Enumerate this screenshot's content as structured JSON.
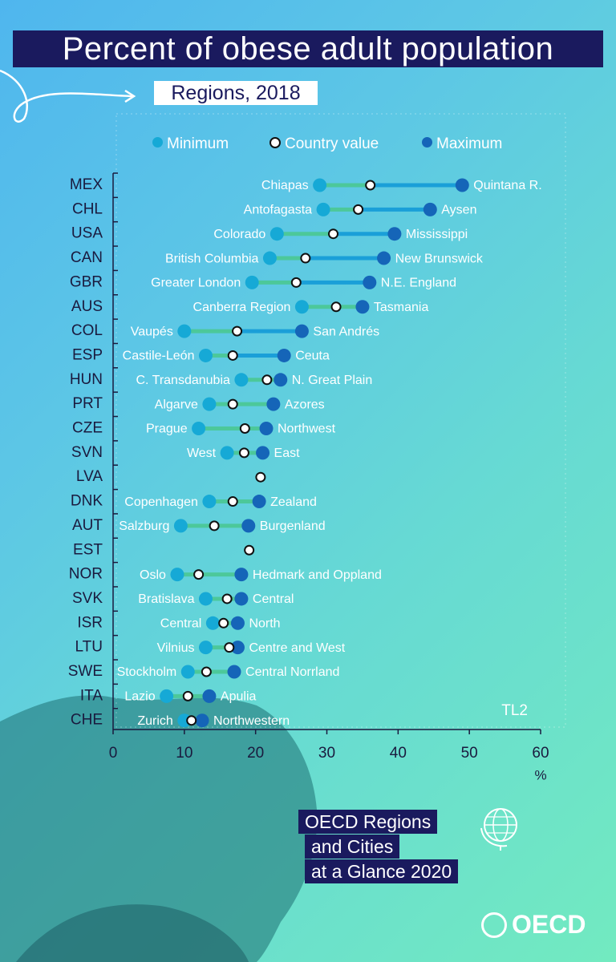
{
  "header": {
    "title": "Percent of obese adult population",
    "subtitle": "Regions, 2018"
  },
  "legend": {
    "min_label": "Minimum",
    "country_label": "Country value",
    "max_label": "Maximum"
  },
  "colors": {
    "minimum": "#16a9d6",
    "maximum": "#1565b8",
    "country_fill": "#ffffff",
    "range_green": "#4cc89a",
    "range_blue": "#1a9fd8",
    "dark_navy": "#1a1a5e"
  },
  "chart_data": {
    "type": "dot-range",
    "title": "Percent of obese adult population",
    "subtitle": "Regions, 2018",
    "xlabel": "%",
    "xlim": [
      0,
      60
    ],
    "xticks": [
      0,
      10,
      20,
      30,
      40,
      50,
      60
    ],
    "annotation": "TL2",
    "rows": [
      {
        "country": "MEX",
        "min": 29,
        "min_region": "Chiapas",
        "value": 36.1,
        "max": 49,
        "max_region": "Quintana R."
      },
      {
        "country": "CHL",
        "min": 29.5,
        "min_region": "Antofagasta",
        "value": 34.4,
        "max": 44.5,
        "max_region": "Aysen"
      },
      {
        "country": "USA",
        "min": 23,
        "min_region": "Colorado",
        "value": 30.9,
        "max": 39.5,
        "max_region": "Mississippi"
      },
      {
        "country": "CAN",
        "min": 22,
        "min_region": "British Columbia",
        "value": 27,
        "max": 38,
        "max_region": "New Brunswick"
      },
      {
        "country": "GBR",
        "min": 19.5,
        "min_region": "Greater London",
        "value": 25.7,
        "max": 36,
        "max_region": "N.E. England"
      },
      {
        "country": "AUS",
        "min": 26.5,
        "min_region": "Canberra Region",
        "value": 31.3,
        "max": 35,
        "max_region": "Tasmania"
      },
      {
        "country": "COL",
        "min": 10,
        "min_region": "Vaupés",
        "value": 17.4,
        "max": 26.5,
        "max_region": "San Andrés"
      },
      {
        "country": "ESP",
        "min": 13,
        "min_region": "Castile-León",
        "value": 16.8,
        "max": 24,
        "max_region": "Ceuta"
      },
      {
        "country": "HUN",
        "min": 18,
        "min_region": "C. Transdanubia",
        "value": 21.6,
        "max": 23.5,
        "max_region": "N. Great Plain"
      },
      {
        "country": "PRT",
        "min": 13.5,
        "min_region": "Algarve",
        "value": 16.8,
        "max": 22.5,
        "max_region": "Azores"
      },
      {
        "country": "CZE",
        "min": 12,
        "min_region": "Prague",
        "value": 18.5,
        "max": 21.5,
        "max_region": "Northwest"
      },
      {
        "country": "SVN",
        "min": 16,
        "min_region": "West",
        "value": 18.4,
        "max": 21,
        "max_region": "East"
      },
      {
        "country": "LVA",
        "min": null,
        "min_region": "",
        "value": 20.7,
        "max": null,
        "max_region": ""
      },
      {
        "country": "DNK",
        "min": 13.5,
        "min_region": "Copenhagen",
        "value": 16.8,
        "max": 20.5,
        "max_region": "Zealand"
      },
      {
        "country": "AUT",
        "min": 9.5,
        "min_region": "Salzburg",
        "value": 14.2,
        "max": 19,
        "max_region": "Burgenland"
      },
      {
        "country": "EST",
        "min": null,
        "min_region": "",
        "value": 19.1,
        "max": null,
        "max_region": ""
      },
      {
        "country": "NOR",
        "min": 9,
        "min_region": "Oslo",
        "value": 12,
        "max": 18,
        "max_region": "Hedmark and Oppland"
      },
      {
        "country": "SVK",
        "min": 13,
        "min_region": "Bratislava",
        "value": 16,
        "max": 18,
        "max_region": "Central"
      },
      {
        "country": "ISR",
        "min": 14,
        "min_region": "Central",
        "value": 15.5,
        "max": 17.5,
        "max_region": "North"
      },
      {
        "country": "LTU",
        "min": 13,
        "min_region": "Vilnius",
        "value": 16.3,
        "max": 17.5,
        "max_region": "Centre and West"
      },
      {
        "country": "SWE",
        "min": 10.5,
        "min_region": "Stockholm",
        "value": 13.1,
        "max": 17,
        "max_region": "Central Norrland"
      },
      {
        "country": "ITA",
        "min": 7.5,
        "min_region": "Lazio",
        "value": 10.5,
        "max": 13.5,
        "max_region": "Apulia"
      },
      {
        "country": "CHE",
        "min": 10,
        "min_region": "Zurich",
        "value": 11,
        "max": 12.5,
        "max_region": "Northwestern"
      }
    ]
  },
  "footer": {
    "brand_line1": "OECD Regions",
    "brand_line2": "and Cities",
    "brand_line3": "at a Glance 2020",
    "logo_text": "OECD"
  }
}
